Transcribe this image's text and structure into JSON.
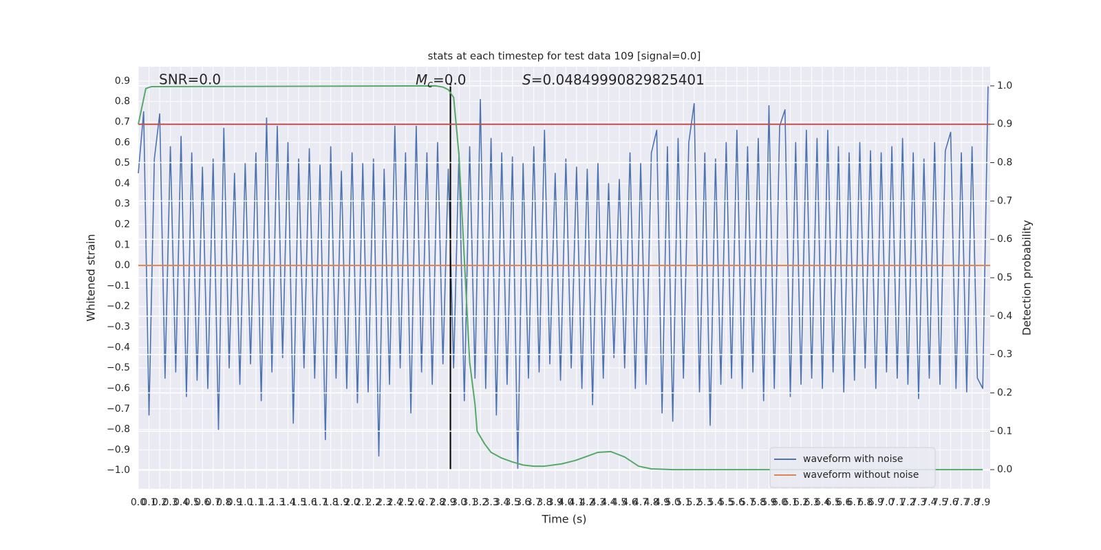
{
  "chart_data": {
    "type": "line",
    "title": "stats at each timestep for test data 109 [signal=0.0]",
    "xlabel": "Time (s)",
    "ylabel": "Whitened strain",
    "y2label": "Detection probability",
    "annotations": {
      "snr": "SNR=0.0",
      "mc": {
        "symbol": "M",
        "subscript": "c",
        "text": "=0.0"
      },
      "s": {
        "symbol": "S",
        "text": "=0.04849990829825401"
      }
    },
    "grid": true,
    "legend": "lower right",
    "xlim": [
      0,
      7.97
    ],
    "ylim": [
      -1.09,
      0.97
    ],
    "y2lim": [
      -0.05,
      1.05
    ],
    "xticks": [
      {
        "value": 0,
        "label": "0.0"
      },
      0.1,
      0.2,
      0.3,
      0.4,
      0.5,
      0.6,
      0.7,
      0.8,
      0.9,
      {
        "value": 1,
        "label": "1.0"
      },
      1.1,
      1.2,
      1.3,
      1.4,
      1.5,
      1.6,
      1.7,
      1.8,
      1.9,
      {
        "value": 2,
        "label": "2.0"
      },
      2.1,
      2.2,
      2.3,
      2.4,
      2.5,
      2.6,
      2.7,
      2.8,
      2.9,
      {
        "value": 3,
        "label": "3.0"
      },
      3.1,
      3.2,
      3.3,
      3.4,
      3.5,
      3.6,
      3.7,
      3.8,
      3.9,
      {
        "value": 4,
        "label": "4.0"
      },
      4.1,
      4.2,
      4.3,
      4.4,
      4.5,
      4.6,
      4.7,
      4.8,
      4.9,
      {
        "value": 5,
        "label": "5.0"
      },
      5.1,
      5.2,
      5.3,
      5.4,
      5.5,
      5.6,
      5.7,
      5.8,
      5.9,
      {
        "value": 6,
        "label": "6.0"
      },
      6.1,
      6.2,
      6.3,
      6.4,
      6.5,
      6.6,
      6.7,
      6.8,
      6.9,
      {
        "value": 7,
        "label": "7.0"
      },
      7.1,
      7.2,
      7.3,
      7.4,
      7.5,
      7.6,
      7.7,
      7.8,
      7.9
    ],
    "yticks": [
      {
        "value": -1,
        "label": "−1.0"
      },
      {
        "value": -0.9,
        "label": "−0.9"
      },
      {
        "value": -0.8,
        "label": "−0.8"
      },
      {
        "value": -0.7,
        "label": "−0.7"
      },
      {
        "value": -0.6,
        "label": "−0.6"
      },
      {
        "value": -0.5,
        "label": "−0.5"
      },
      {
        "value": -0.4,
        "label": "−0.4"
      },
      {
        "value": -0.3,
        "label": "−0.3"
      },
      {
        "value": -0.2,
        "label": "−0.2"
      },
      {
        "value": -0.1,
        "label": "−0.1"
      },
      {
        "value": 0,
        "label": "0.0"
      },
      0.1,
      0.2,
      0.3,
      0.4,
      0.5,
      0.6,
      0.7,
      0.8,
      0.9
    ],
    "y2ticks": [
      {
        "value": 0,
        "label": "0.0"
      },
      0.1,
      0.2,
      0.3,
      0.4,
      0.5,
      0.6,
      0.7,
      0.8,
      0.9,
      {
        "value": 1,
        "label": "1.0"
      }
    ],
    "hlines": [
      {
        "value": 0.9,
        "axis": "y2",
        "color": "#c44e52"
      }
    ],
    "vlines": [
      {
        "value": 2.92,
        "color": "#000000"
      }
    ],
    "series": [
      {
        "name": "waveform with noise",
        "color": "#4c72b0",
        "x": [
          0,
          0.05,
          0.1,
          0.15,
          0.2,
          0.25,
          0.3,
          0.35,
          0.4,
          0.45,
          0.5,
          0.55,
          0.6,
          0.65,
          0.7,
          0.75,
          0.8,
          0.85,
          0.9,
          0.95,
          1,
          1.05,
          1.1,
          1.15,
          1.2,
          1.25,
          1.3,
          1.35,
          1.4,
          1.45,
          1.5,
          1.55,
          1.6,
          1.65,
          1.7,
          1.75,
          1.8,
          1.85,
          1.9,
          1.95,
          2,
          2.05,
          2.1,
          2.15,
          2.2,
          2.25,
          2.3,
          2.35,
          2.4,
          2.45,
          2.5,
          2.55,
          2.6,
          2.65,
          2.7,
          2.75,
          2.8,
          2.85,
          2.9,
          2.95,
          3,
          3.05,
          3.1,
          3.15,
          3.2,
          3.25,
          3.3,
          3.35,
          3.4,
          3.45,
          3.5,
          3.55,
          3.6,
          3.65,
          3.7,
          3.75,
          3.8,
          3.85,
          3.9,
          3.95,
          4,
          4.05,
          4.1,
          4.15,
          4.2,
          4.25,
          4.3,
          4.35,
          4.4,
          4.45,
          4.5,
          4.55,
          4.6,
          4.65,
          4.7,
          4.75,
          4.8,
          4.85,
          4.9,
          4.95,
          5,
          5.05,
          5.1,
          5.15,
          5.2,
          5.25,
          5.3,
          5.35,
          5.4,
          5.45,
          5.5,
          5.55,
          5.6,
          5.65,
          5.7,
          5.75,
          5.8,
          5.85,
          5.9,
          5.95,
          6,
          6.05,
          6.1,
          6.15,
          6.2,
          6.25,
          6.3,
          6.35,
          6.4,
          6.45,
          6.5,
          6.55,
          6.6,
          6.65,
          6.7,
          6.75,
          6.8,
          6.85,
          6.9,
          6.95,
          7,
          7.05,
          7.1,
          7.15,
          7.2,
          7.25,
          7.3,
          7.35,
          7.4,
          7.45,
          7.5,
          7.55,
          7.6,
          7.65,
          7.7,
          7.75,
          7.8,
          7.85,
          7.9,
          7.95
        ],
        "values": [
          0.45,
          0.75,
          -0.73,
          0.52,
          0.74,
          -0.55,
          0.58,
          -0.52,
          0.63,
          -0.64,
          0.55,
          -0.56,
          0.48,
          -0.6,
          0.52,
          -0.8,
          0.67,
          -0.5,
          0.45,
          -0.58,
          0.5,
          -0.48,
          0.55,
          -0.66,
          0.72,
          -0.52,
          0.68,
          -0.45,
          0.6,
          -0.77,
          0.52,
          -0.5,
          0.57,
          -0.55,
          0.49,
          -0.85,
          0.58,
          -0.55,
          0.46,
          -0.6,
          0.55,
          -0.67,
          0.5,
          -0.62,
          0.52,
          -0.93,
          0.47,
          -0.58,
          0.68,
          -0.5,
          0.55,
          -0.72,
          0.68,
          -0.52,
          0.55,
          -0.58,
          0.6,
          -0.48,
          0.47,
          -0.5,
          0.55,
          -0.66,
          0.58,
          -0.55,
          0.81,
          -0.6,
          0.62,
          -0.73,
          0.55,
          -0.58,
          0.53,
          -0.99,
          0.5,
          -0.55,
          0.58,
          -0.52,
          0.66,
          -0.48,
          0.45,
          -0.56,
          0.52,
          -0.5,
          0.48,
          -0.6,
          0.47,
          -0.68,
          0.5,
          -0.55,
          0.4,
          -0.45,
          0.42,
          -0.5,
          0.55,
          -0.6,
          0.5,
          -0.58,
          0.55,
          0.66,
          -0.72,
          0.58,
          -0.76,
          0.62,
          -0.55,
          0.6,
          0.79,
          -0.62,
          0.55,
          -0.78,
          0.52,
          -0.58,
          0.6,
          -0.55,
          0.66,
          -0.6,
          0.58,
          -0.52,
          0.62,
          -0.66,
          0.78,
          -0.6,
          0.68,
          0.76,
          -0.64,
          0.6,
          -0.58,
          0.66,
          -0.55,
          0.62,
          -0.6,
          0.66,
          -0.52,
          0.58,
          -0.62,
          0.55,
          -0.56,
          0.6,
          -0.5,
          0.56,
          -0.6,
          0.55,
          -0.52,
          0.58,
          -0.55,
          0.62,
          -0.58,
          0.55,
          -0.65,
          0.52,
          -0.55,
          0.6,
          -0.58,
          0.56,
          0.65,
          -0.6,
          0.55,
          -0.62,
          0.58,
          -0.55,
          -0.6,
          0.88
        ]
      },
      {
        "name": "waveform without noise",
        "color": "#dd8452",
        "x": [
          0,
          7.97
        ],
        "values": [
          0,
          0
        ]
      },
      {
        "color": "#55a868",
        "axis": "y2",
        "x": [
          0,
          0.07,
          0.12,
          2.78,
          2.85,
          2.9,
          2.95,
          3,
          3.05,
          3.1,
          3.15,
          3.17,
          3.24,
          3.3,
          3.4,
          3.5,
          3.6,
          3.7,
          3.8,
          3.96,
          4.09,
          4.2,
          4.3,
          4.42,
          4.55,
          4.68,
          4.8,
          4.9,
          5,
          7.9
        ],
        "values": [
          0.9,
          0.993,
          0.998,
          1,
          0.997,
          0.99,
          0.97,
          0.82,
          0.55,
          0.28,
          0.17,
          0.1,
          0.067,
          0.045,
          0.03,
          0.02,
          0.012,
          0.009,
          0.009,
          0.015,
          0.024,
          0.035,
          0.045,
          0.047,
          0.033,
          0.009,
          0.002,
          0.001,
          0,
          0
        ]
      }
    ]
  }
}
